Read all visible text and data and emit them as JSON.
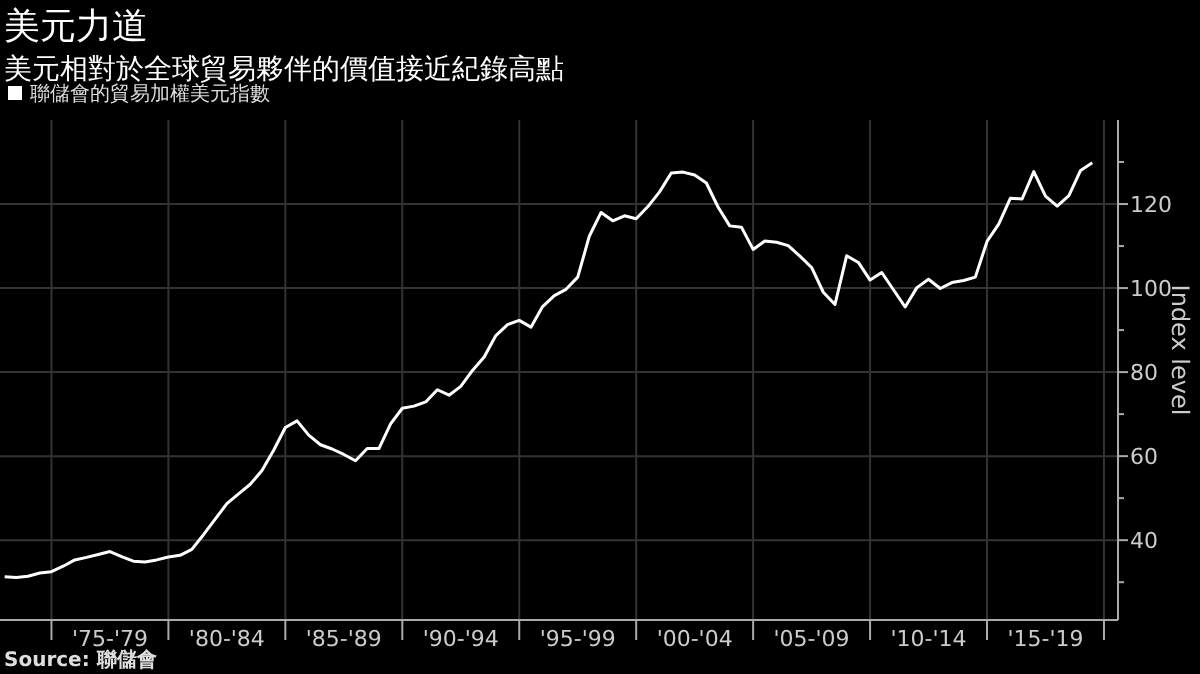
{
  "chart_data": {
    "type": "line",
    "title": "美元力道",
    "subtitle": "美元相對於全球貿易夥伴的價值接近紀錄高點",
    "ylabel": "Index level",
    "annotations": [
      "Source: 聯儲會"
    ],
    "legend": "top left",
    "grid": true,
    "ylim": [
      21,
      140
    ],
    "categories": [
      null,
      null,
      null,
      null,
      null,
      null,
      null,
      null,
      null,
      "'75-'79",
      null,
      null,
      null,
      null,
      null,
      null,
      null,
      null,
      null,
      "'80-'84",
      null,
      null,
      null,
      null,
      null,
      null,
      null,
      null,
      null,
      "'85-'89",
      null,
      null,
      null,
      null,
      null,
      null,
      null,
      null,
      null,
      "'90-'94",
      null,
      null,
      null,
      null,
      null,
      null,
      null,
      null,
      null,
      "'95-'99",
      null,
      null,
      null,
      null,
      null,
      null,
      null,
      null,
      null,
      "'00-'04",
      null,
      null,
      null,
      null,
      null,
      null,
      null,
      null,
      null,
      "'05-'09",
      null,
      null,
      null,
      null,
      null,
      null,
      null,
      null,
      null,
      "'10-'14",
      null,
      null,
      null,
      null,
      null,
      null,
      null,
      null,
      null,
      "'15-'19",
      null,
      null,
      null,
      null
    ],
    "yticks": [
      {
        "value": 30,
        "label": null
      },
      40,
      {
        "value": 50,
        "label": null
      },
      60,
      {
        "value": 70,
        "label": null
      },
      80,
      {
        "value": 90,
        "label": null
      },
      100,
      {
        "value": 110,
        "label": null
      },
      120,
      {
        "value": 130,
        "label": null
      }
    ],
    "series": [
      {
        "name": "聯儲會的貿易加權美元指數",
        "color": "#ffffff",
        "values": [
          31.3,
          31.1,
          31.4,
          32.2,
          32.5,
          33.8,
          35.3,
          35.9,
          36.6,
          37.3,
          36.1,
          35.0,
          34.8,
          35.3,
          36.0,
          36.4,
          37.8,
          41.3,
          45.0,
          48.7,
          51.0,
          53.3,
          56.6,
          61.4,
          66.8,
          68.4,
          65.0,
          62.7,
          61.7,
          60.4,
          58.9,
          61.8,
          61.8,
          67.7,
          71.4,
          71.9,
          72.9,
          75.8,
          74.5,
          76.6,
          80.4,
          83.6,
          88.7,
          91.3,
          92.3,
          90.7,
          95.6,
          98.2,
          99.7,
          102.6,
          112.4,
          118.0,
          116.0,
          117.2,
          116.5,
          119.4,
          122.9,
          127.4,
          127.6,
          126.9,
          125.0,
          119.3,
          114.8,
          114.5,
          109.2,
          111.2,
          110.9,
          110.1,
          107.6,
          104.9,
          99.0,
          96.1,
          107.7,
          106.1,
          101.9,
          103.7,
          99.6,
          95.5,
          100.1,
          102.1,
          99.9,
          101.3,
          101.8,
          102.6,
          111.1,
          115.2,
          121.4,
          121.2,
          127.7,
          121.9,
          119.5,
          122.0,
          128.0,
          129.8
        ]
      }
    ]
  }
}
